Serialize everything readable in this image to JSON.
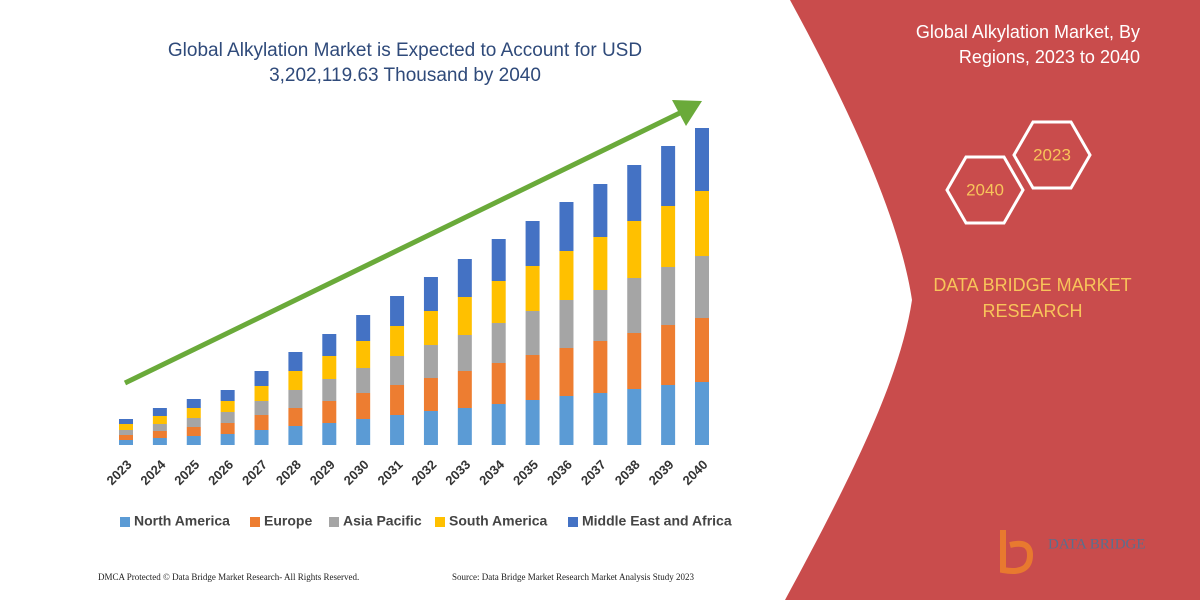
{
  "title": "Global Alkylation Market is Expected to Account for USD 3,202,119.63 Thousand by 2040",
  "chart_data": {
    "type": "stacked-bar",
    "categories": [
      "2023",
      "2024",
      "2025",
      "2026",
      "2027",
      "2028",
      "2029",
      "2030",
      "2031",
      "2032",
      "2033",
      "2034",
      "2035",
      "2036",
      "2037",
      "2038",
      "2039",
      "2040"
    ],
    "series": [
      {
        "name": "North America",
        "color": "#5b9bd5",
        "values": [
          5,
          7,
          9,
          11,
          15,
          19,
          22,
          26,
          30,
          34,
          37,
          41,
          45,
          49,
          52,
          56,
          60,
          63
        ]
      },
      {
        "name": "Europe",
        "color": "#ed7d31",
        "values": [
          5,
          7,
          9,
          11,
          15,
          18,
          22,
          26,
          30,
          33,
          37,
          41,
          45,
          48,
          52,
          56,
          60,
          64
        ]
      },
      {
        "name": "Asia Pacific",
        "color": "#a5a5a5",
        "values": [
          5,
          7,
          9,
          11,
          14,
          18,
          22,
          25,
          29,
          33,
          36,
          40,
          44,
          48,
          51,
          55,
          58,
          62
        ]
      },
      {
        "name": "South America",
        "color": "#ffc000",
        "values": [
          6,
          8,
          10,
          11,
          15,
          19,
          23,
          27,
          30,
          34,
          38,
          42,
          45,
          49,
          53,
          57,
          61,
          65
        ]
      },
      {
        "name": "Middle East and Africa",
        "color": "#4472c4",
        "values": [
          5,
          8,
          9,
          11,
          15,
          19,
          22,
          26,
          30,
          34,
          38,
          42,
          45,
          49,
          53,
          56,
          60,
          63
        ]
      }
    ]
  },
  "panel": {
    "title": "Global Alkylation Market, By Regions, 2023 to 2040",
    "hex_start": "2023",
    "hex_end": "2040",
    "brand": "DATA BRIDGE MARKET RESEARCH",
    "logo": "DATA BRIDGE"
  },
  "footer": {
    "left": "DMCA Protected © Data Bridge Market Research-  All Rights Reserved.",
    "right": "Source: Data Bridge Market Research  Market Analysis Study 2023"
  }
}
